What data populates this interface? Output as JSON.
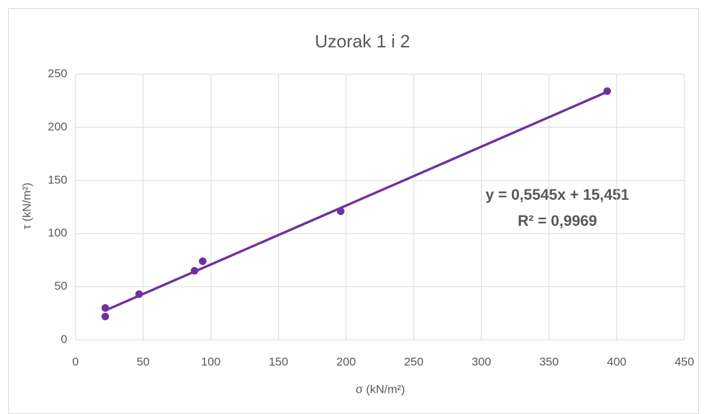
{
  "chart_data": {
    "type": "scatter",
    "title": "Uzorak 1 i 2",
    "x_label": "σ (kN/m²)",
    "y_label": "τ (kN/m²)",
    "series": [
      {
        "name": "Uzorak 1 i 2",
        "color": "#7030a0",
        "x": [
          22,
          22,
          47,
          88,
          94,
          196,
          393
        ],
        "values": [
          30,
          22,
          43,
          65,
          74,
          121,
          234
        ]
      }
    ],
    "trendline": {
      "slope": 0.5545,
      "intercept": 15.451,
      "color": "#7030a0",
      "equation": "y = 0,5545x + 15,451",
      "r_squared": "R² = 0,9969"
    },
    "xlim": [
      0,
      450
    ],
    "xticks": [
      0,
      50,
      100,
      150,
      200,
      250,
      300,
      350,
      400,
      450
    ],
    "ylim": [
      0,
      250
    ],
    "yticks": [
      0,
      50,
      100,
      150,
      200,
      250
    ],
    "grid": true
  }
}
